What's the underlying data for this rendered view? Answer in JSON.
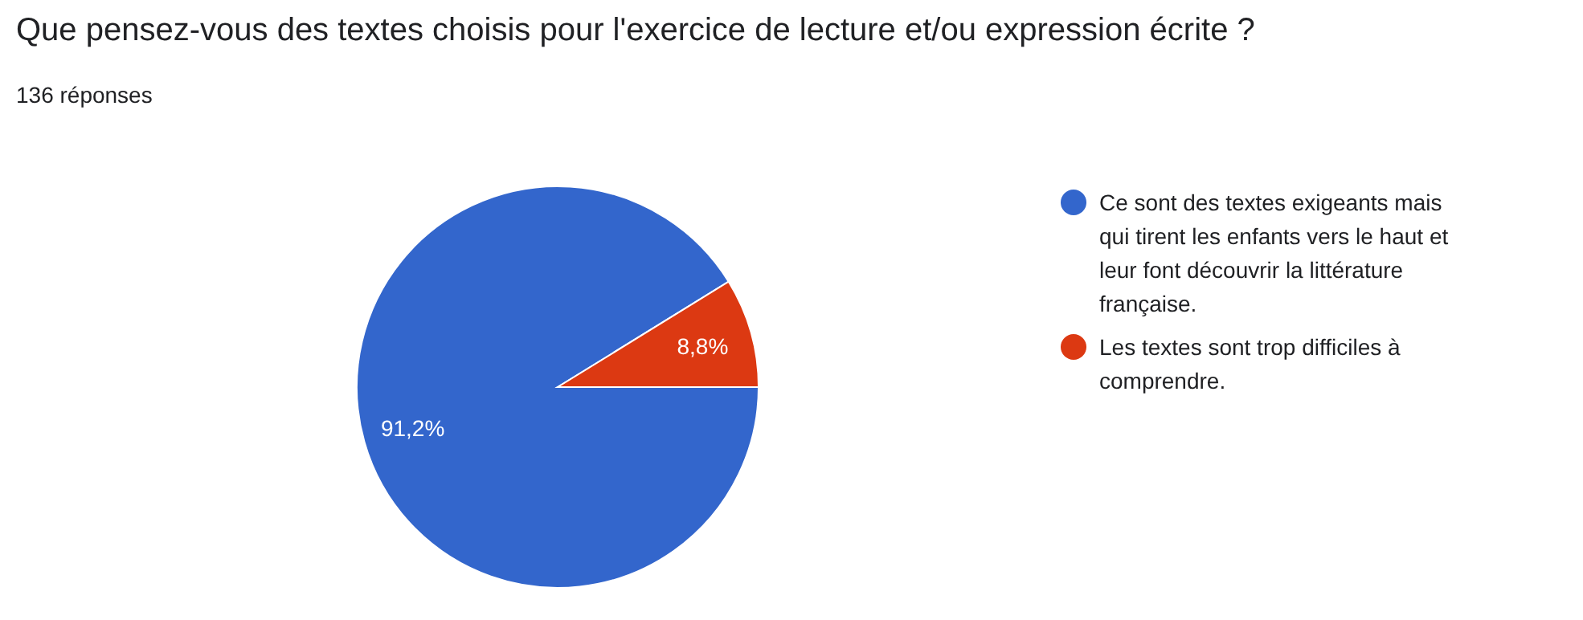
{
  "chart_data": {
    "type": "pie",
    "title": "Que pensez-vous des textes choisis pour l'exercice de lecture et/ou expression écrite ?",
    "subtitle": "136 réponses",
    "categories": [
      "Ce sont des textes exigeants mais qui tirent les enfants vers le haut et leur font découvrir la littérature française.",
      "Les textes sont trop difficiles à comprendre."
    ],
    "values": [
      91.2,
      8.8
    ],
    "colors": [
      "#3366cc",
      "#dc3912"
    ],
    "value_labels": [
      "91,2%",
      "8,8%"
    ],
    "legend": "right"
  }
}
